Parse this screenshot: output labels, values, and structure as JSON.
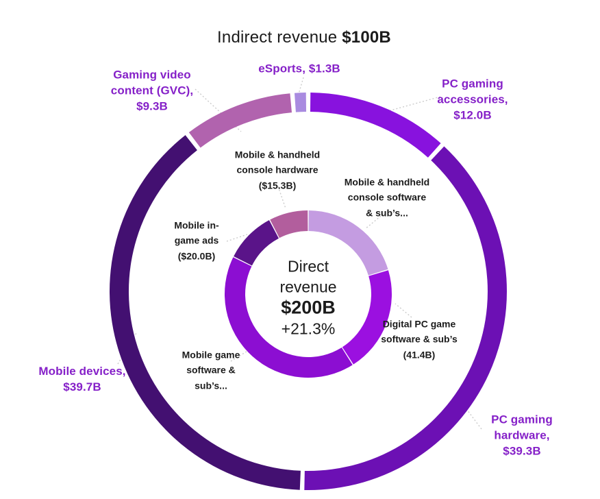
{
  "theme": {
    "background": "#ffffff",
    "label_purple": "#8520C8",
    "text_black": "#1b1b1b",
    "connector_gray": "#cbcbcb"
  },
  "labels": {
    "title_prefix": "Indirect revenue ",
    "title_value": "$100B",
    "esports": "eSports, $1.3B",
    "gvc": "Gaming video\ncontent (GVC),\n$9.3B",
    "pc_accessories": "PC gaming\naccessories,\n$12.0B",
    "mobile_devices": "Mobile devices,\n$39.7B",
    "pc_hardware": "PC gaming\nhardware,\n$39.3B",
    "console_hardware": "Mobile & handheld\nconsole hardware\n($15.3B)",
    "console_software": "Mobile & handheld\nconsole software\n& sub’s...",
    "in_game_ads": "Mobile in-\ngame ads\n($20.0B)",
    "mobile_game_software": "Mobile game\nsoftware &\nsub’s...",
    "digital_pc_software": "Digital PC game\nsoftware & sub’s\n(41.4B)",
    "center": {
      "line1": "Direct",
      "line2": "revenue",
      "value": "$200B",
      "growth": "+21.3%"
    }
  },
  "chart_data": {
    "type": "pie",
    "subtype": "double-donut",
    "title": "Indirect revenue $100B",
    "center_label": {
      "line1": "Direct",
      "line2": "revenue",
      "value": "$200B",
      "growth": "+21.3%"
    },
    "legend_position": "callout-labels",
    "rings": [
      {
        "id": "outer",
        "name": "Indirect revenue",
        "total_display": "$100B",
        "start_angle_deg": 0,
        "segments": [
          {
            "id": "pc-gaming-accessories",
            "label": "PC gaming accessories",
            "value": 12.0,
            "display": "$12.0B",
            "color": "#8812DE"
          },
          {
            "id": "pc-gaming-hardware",
            "label": "PC gaming hardware",
            "value": 39.3,
            "display": "$39.3B",
            "color": "#6C10B4"
          },
          {
            "id": "mobile-devices",
            "label": "Mobile devices",
            "value": 39.7,
            "display": "$39.7B",
            "color": "#431071"
          },
          {
            "id": "gaming-video-content",
            "label": "Gaming video content (GVC)",
            "value": 9.3,
            "display": "$9.3B",
            "color": "#B163AE"
          },
          {
            "id": "esports",
            "label": "eSports",
            "value": 1.3,
            "display": "$1.3B",
            "color": "#A98BE0"
          }
        ]
      },
      {
        "id": "inner",
        "name": "Direct revenue",
        "total_display": "$200B",
        "growth": "+21.3%",
        "start_angle_deg": 0,
        "segments": [
          {
            "id": "console-software",
            "label": "Mobile & handheld console software & sub's",
            "value": 40.6,
            "value_estimated": true,
            "display": "& sub's...",
            "color": "#C49CE1"
          },
          {
            "id": "digital-pc-game-software",
            "label": "Digital PC game software & sub's",
            "value": 41.4,
            "display": "(41.4B)",
            "color": "#9B10E0"
          },
          {
            "id": "mobile-game-software",
            "label": "Mobile game software & sub's",
            "value": 82.7,
            "value_estimated": true,
            "display": "sub's...",
            "color": "#8C0ED2"
          },
          {
            "id": "mobile-in-game-ads",
            "label": "Mobile in-game ads",
            "value": 20.0,
            "display": "($20.0B)",
            "color": "#5A1489"
          },
          {
            "id": "console-hardware",
            "label": "Mobile & handheld console hardware",
            "value": 15.3,
            "display": "($15.3B)",
            "color": "#B25E9D"
          }
        ]
      }
    ]
  }
}
